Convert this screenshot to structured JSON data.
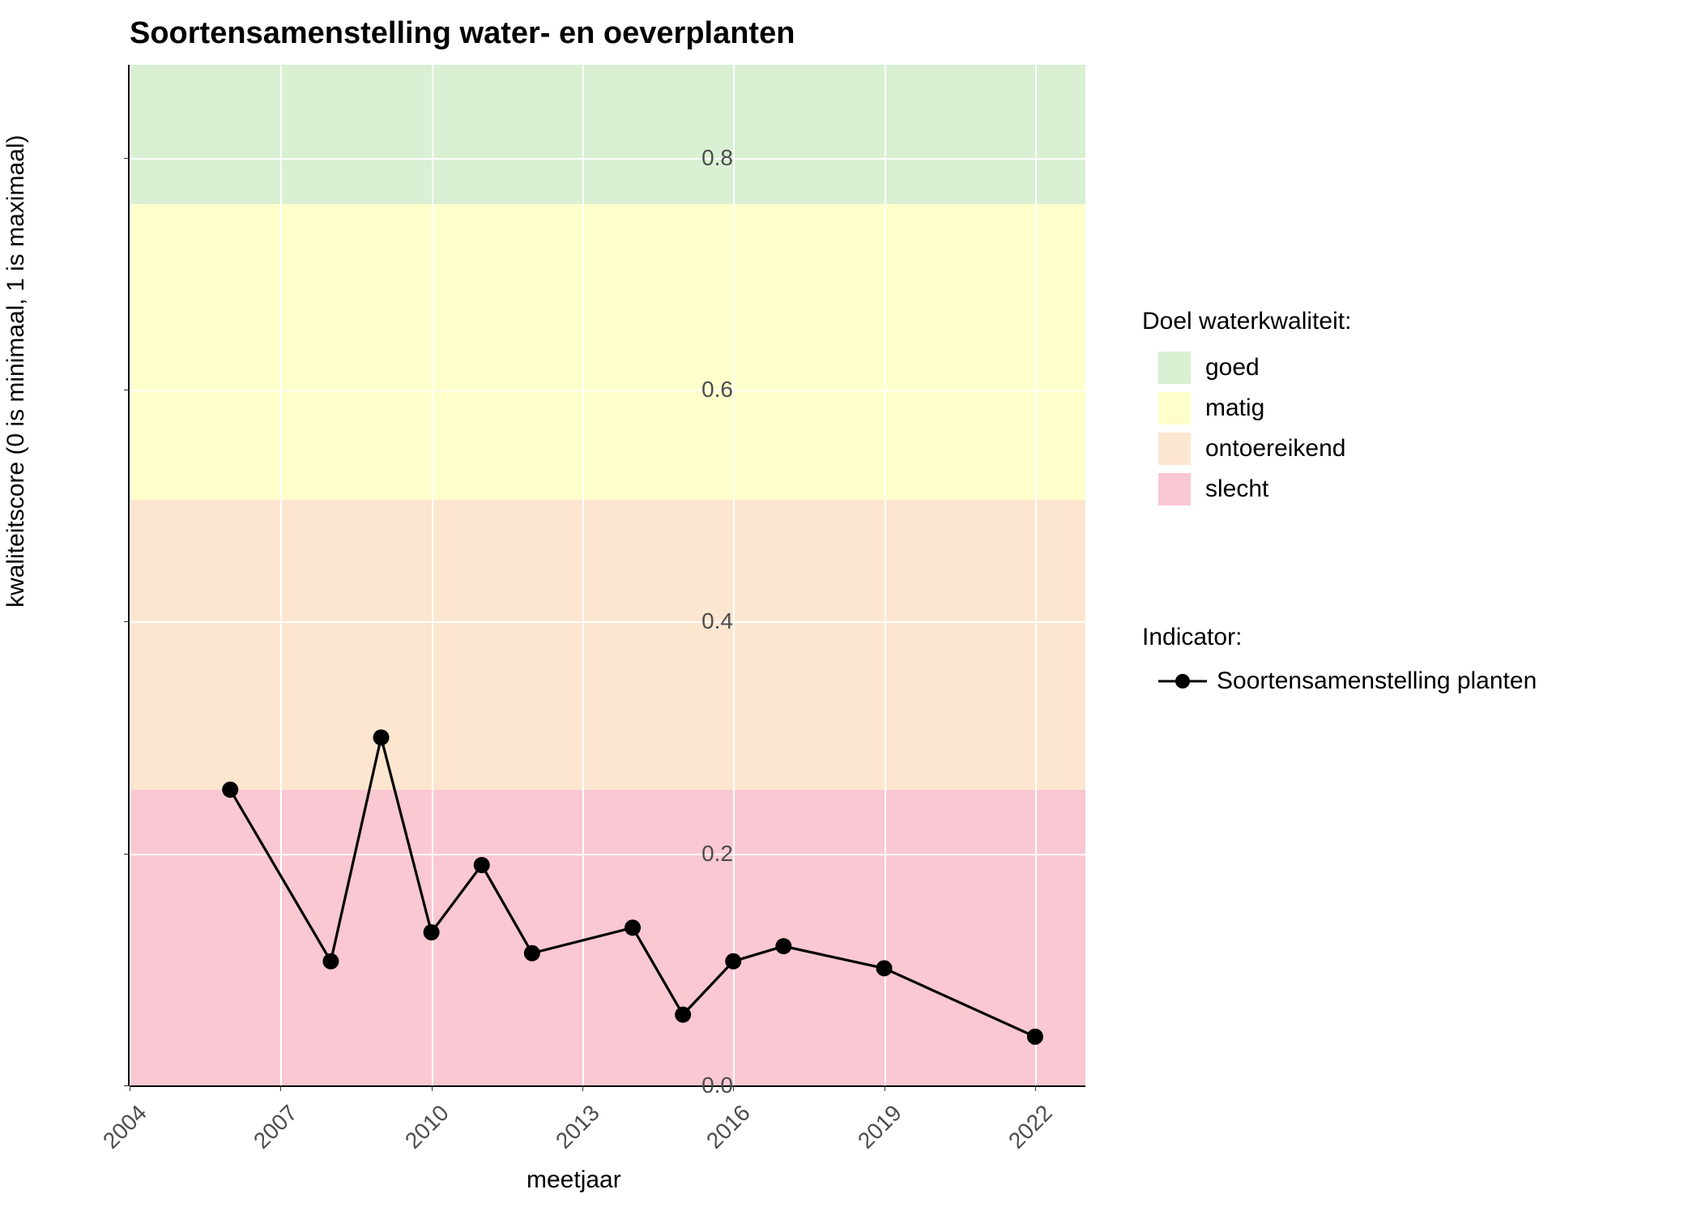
{
  "chart": {
    "type": "line",
    "title": "Soortensamenstelling water- en oeverplanten",
    "title_fontsize": 38,
    "xlabel": "meetjaar",
    "ylabel": "kwaliteitscore (0 is minimaal, 1 is maximaal)",
    "label_fontsize": 30,
    "tick_fontsize": 28,
    "background_color": "#ffffff",
    "grid_color": "#ffffff",
    "xlim": [
      2004,
      2023
    ],
    "ylim": [
      0.0,
      0.88
    ],
    "xticks": [
      2004,
      2007,
      2010,
      2013,
      2016,
      2019,
      2022
    ],
    "yticks": [
      0.0,
      0.2,
      0.4,
      0.6,
      0.8
    ],
    "xtick_rotation": -45,
    "bands": [
      {
        "name": "goed",
        "from": 0.76,
        "to": 0.88,
        "color": "#d9f0d3"
      },
      {
        "name": "matig",
        "from": 0.505,
        "to": 0.76,
        "color": "#ffffcc"
      },
      {
        "name": "ontoereikend",
        "from": 0.255,
        "to": 0.505,
        "color": "#fde6cf"
      },
      {
        "name": "slecht",
        "from": 0.0,
        "to": 0.255,
        "color": "#f9c8d3"
      }
    ],
    "series": [
      {
        "name": "Soortensamenstelling planten",
        "color": "#000000",
        "line_width": 2,
        "marker": "circle",
        "marker_size": 10,
        "data": [
          {
            "x": 2006,
            "y": 0.255
          },
          {
            "x": 2008,
            "y": 0.107
          },
          {
            "x": 2009,
            "y": 0.3
          },
          {
            "x": 2010,
            "y": 0.132
          },
          {
            "x": 2011,
            "y": 0.19
          },
          {
            "x": 2012,
            "y": 0.114
          },
          {
            "x": 2014,
            "y": 0.136
          },
          {
            "x": 2015,
            "y": 0.061
          },
          {
            "x": 2016,
            "y": 0.107
          },
          {
            "x": 2017,
            "y": 0.12
          },
          {
            "x": 2019,
            "y": 0.101
          },
          {
            "x": 2022,
            "y": 0.042
          }
        ]
      }
    ],
    "legend1_title": "Doel waterkwaliteit:",
    "legend1_items": [
      {
        "label": "goed",
        "color": "#d9f0d3"
      },
      {
        "label": "matig",
        "color": "#ffffcc"
      },
      {
        "label": "ontoereikend",
        "color": "#fde6cf"
      },
      {
        "label": "slecht",
        "color": "#f9c8d3"
      }
    ],
    "legend2_title": "Indicator:",
    "legend2_items": [
      {
        "label": "Soortensamenstelling planten",
        "color": "#000000"
      }
    ]
  }
}
